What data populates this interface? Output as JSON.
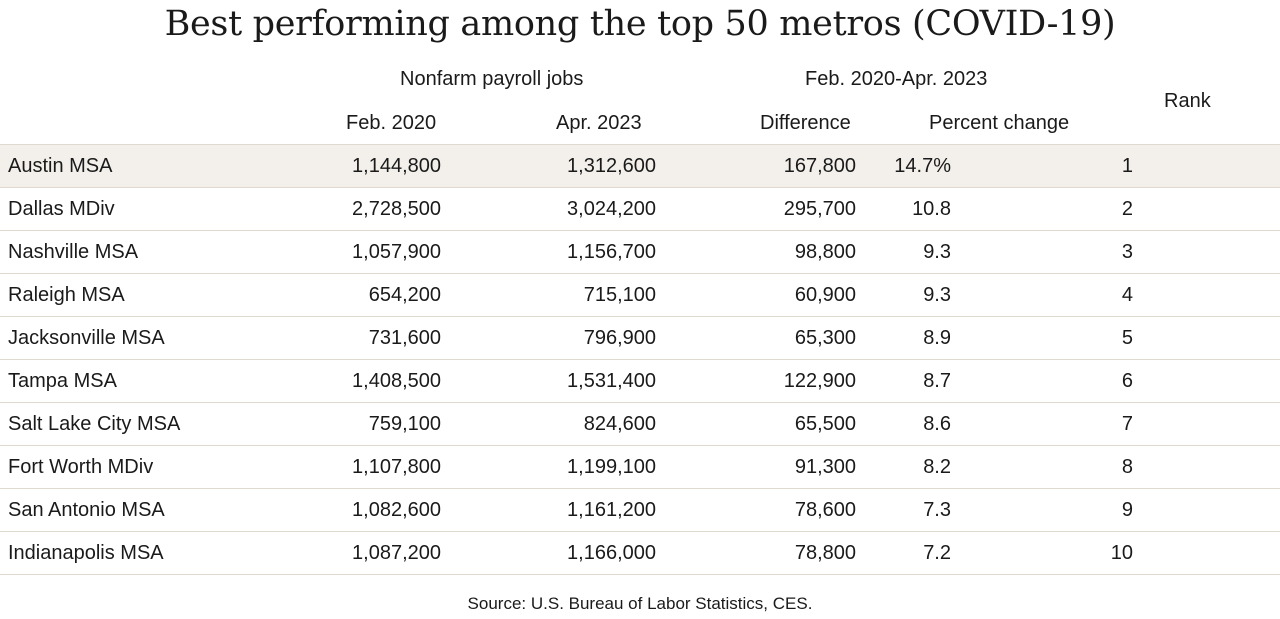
{
  "chart_data": {
    "type": "table",
    "title": "Best performing among the top 50 metros (COVID-19)",
    "group_headers": {
      "payroll": "Nonfarm payroll jobs",
      "period": "Feb. 2020-Apr. 2023"
    },
    "columns": {
      "feb2020": "Feb. 2020",
      "apr2023": "Apr. 2023",
      "difference": "Difference",
      "percent_change": "Percent change",
      "rank": "Rank"
    },
    "rows": [
      {
        "name": "Austin MSA",
        "feb2020": "1,144,800",
        "apr2023": "1,312,600",
        "difference": "167,800",
        "percent_change": "14.7%",
        "rank": "1"
      },
      {
        "name": "Dallas MDiv",
        "feb2020": "2,728,500",
        "apr2023": "3,024,200",
        "difference": "295,700",
        "percent_change": "10.8",
        "rank": "2"
      },
      {
        "name": "Nashville MSA",
        "feb2020": "1,057,900",
        "apr2023": "1,156,700",
        "difference": "98,800",
        "percent_change": "9.3",
        "rank": "3"
      },
      {
        "name": "Raleigh MSA",
        "feb2020": "654,200",
        "apr2023": "715,100",
        "difference": "60,900",
        "percent_change": "9.3",
        "rank": "4"
      },
      {
        "name": "Jacksonville MSA",
        "feb2020": "731,600",
        "apr2023": "796,900",
        "difference": "65,300",
        "percent_change": "8.9",
        "rank": "5"
      },
      {
        "name": "Tampa MSA",
        "feb2020": "1,408,500",
        "apr2023": "1,531,400",
        "difference": "122,900",
        "percent_change": "8.7",
        "rank": "6"
      },
      {
        "name": "Salt Lake City MSA",
        "feb2020": "759,100",
        "apr2023": "824,600",
        "difference": "65,500",
        "percent_change": "8.6",
        "rank": "7"
      },
      {
        "name": "Fort Worth MDiv",
        "feb2020": "1,107,800",
        "apr2023": "1,199,100",
        "difference": "91,300",
        "percent_change": "8.2",
        "rank": "8"
      },
      {
        "name": "San Antonio MSA",
        "feb2020": "1,082,600",
        "apr2023": "1,161,200",
        "difference": "78,600",
        "percent_change": "7.3",
        "rank": "9"
      },
      {
        "name": "Indianapolis MSA",
        "feb2020": "1,087,200",
        "apr2023": "1,166,000",
        "difference": "78,800",
        "percent_change": "7.2",
        "rank": "10"
      }
    ],
    "highlight_row_color": "#f3f0ec",
    "rule_color": "#e0d9cf",
    "source": "Source:  U.S. Bureau of Labor Statistics, CES."
  }
}
